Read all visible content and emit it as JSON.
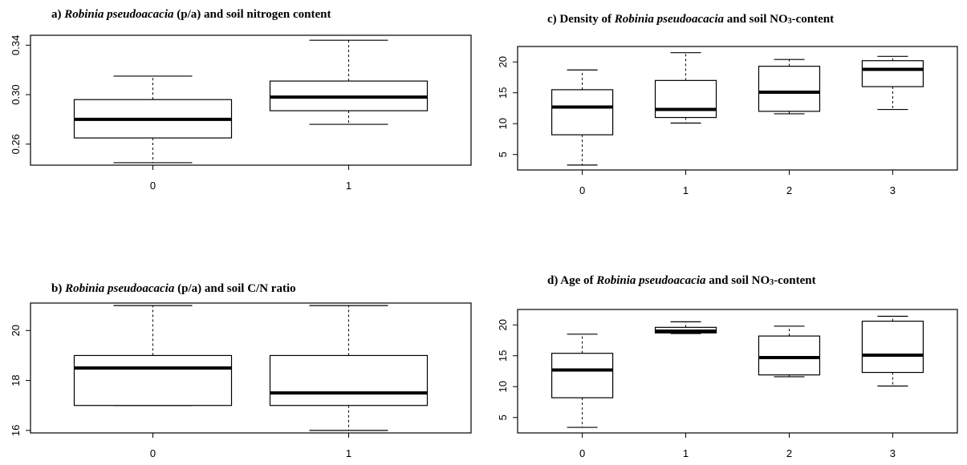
{
  "chart_data": [
    {
      "id": "a",
      "type": "boxplot",
      "title": {
        "prefix": "a) ",
        "species": "Robinia pseudoacacia",
        "suffix": " (p/a) and soil nitrogen content"
      },
      "categories": [
        "0",
        "1"
      ],
      "ylim": [
        0.243,
        0.348
      ],
      "yticks": [
        0.26,
        0.3,
        0.34
      ],
      "ytick_labels": [
        "0.26",
        "0.30",
        "0.34"
      ],
      "boxes": [
        {
          "whisker_low": 0.245,
          "q1": 0.265,
          "median": 0.28,
          "q3": 0.296,
          "whisker_high": 0.315
        },
        {
          "whisker_low": 0.276,
          "q1": 0.287,
          "median": 0.298,
          "q3": 0.311,
          "whisker_high": 0.344
        }
      ]
    },
    {
      "id": "b",
      "type": "boxplot",
      "title": {
        "prefix": "b) ",
        "species": "Robinia pseudoacacia",
        "suffix": " (p/a) and soil C/N ratio"
      },
      "categories": [
        "0",
        "1"
      ],
      "ylim": [
        15.9,
        21.1
      ],
      "yticks": [
        16,
        18,
        20
      ],
      "ytick_labels": [
        "16",
        "18",
        "20"
      ],
      "boxes": [
        {
          "whisker_low": 17.0,
          "q1": 17.0,
          "median": 18.5,
          "q3": 19.0,
          "whisker_high": 21.0
        },
        {
          "whisker_low": 16.0,
          "q1": 17.0,
          "median": 17.5,
          "q3": 19.0,
          "whisker_high": 21.0
        }
      ]
    },
    {
      "id": "c",
      "type": "boxplot",
      "title": {
        "prefix": "c) Density of ",
        "species": "Robinia pseudoacacia",
        "suffix": " and soil NO",
        "sub": "3",
        "suffix2": "-content"
      },
      "categories": [
        "0",
        "1",
        "2",
        "3"
      ],
      "ylim": [
        2.5,
        22.5
      ],
      "yticks": [
        5,
        10,
        15,
        20
      ],
      "ytick_labels": [
        "5",
        "10",
        "15",
        "20"
      ],
      "boxes": [
        {
          "whisker_low": 3.3,
          "q1": 8.2,
          "median": 12.7,
          "q3": 15.5,
          "whisker_high": 18.7
        },
        {
          "whisker_low": 10.1,
          "q1": 11.0,
          "median": 12.3,
          "q3": 17.0,
          "whisker_high": 21.5
        },
        {
          "whisker_low": 11.6,
          "q1": 12.0,
          "median": 15.1,
          "q3": 19.3,
          "whisker_high": 20.4
        },
        {
          "whisker_low": 12.3,
          "q1": 16.0,
          "median": 18.8,
          "q3": 20.2,
          "whisker_high": 20.9
        }
      ]
    },
    {
      "id": "d",
      "type": "boxplot",
      "title": {
        "prefix": "d) Age of ",
        "species": "Robinia pseudoacacia",
        "suffix": " and soil NO",
        "sub": "3",
        "suffix2": "-content"
      },
      "categories": [
        "0",
        "1",
        "2",
        "3"
      ],
      "ylim": [
        2.5,
        22.5
      ],
      "yticks": [
        5,
        10,
        15,
        20
      ],
      "ytick_labels": [
        "5",
        "10",
        "15",
        "20"
      ],
      "boxes": [
        {
          "whisker_low": 3.4,
          "q1": 8.2,
          "median": 12.7,
          "q3": 15.4,
          "whisker_high": 18.5
        },
        {
          "whisker_low": 18.6,
          "q1": 18.7,
          "median": 19.0,
          "q3": 19.6,
          "whisker_high": 20.5
        },
        {
          "whisker_low": 11.6,
          "q1": 11.9,
          "median": 14.7,
          "q3": 18.2,
          "whisker_high": 19.8
        },
        {
          "whisker_low": 10.1,
          "q1": 12.3,
          "median": 15.1,
          "q3": 20.6,
          "whisker_high": 21.4
        }
      ]
    }
  ]
}
